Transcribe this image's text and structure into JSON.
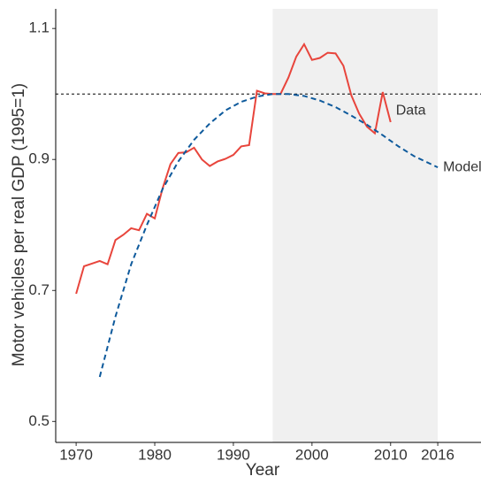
{
  "chart_data": {
    "type": "line",
    "xlabel": "Year",
    "ylabel": "Motor vehicles per real GDP (1995=1)",
    "xlim": [
      1967.4,
      2021.5
    ],
    "ylim": [
      0.468,
      1.13
    ],
    "xticks": [
      1970,
      1980,
      1990,
      2000,
      2010,
      2016
    ],
    "yticks": [
      0.5,
      0.7,
      0.9,
      1.1
    ],
    "shade": [
      1995,
      2016
    ],
    "shade_color": "#f0f0f0",
    "hline": 1,
    "series": [
      {
        "name": "Data",
        "color": "#e8453c",
        "dash": false,
        "x": [
          1970,
          1971,
          1972,
          1973,
          1974,
          1975,
          1976,
          1977,
          1978,
          1979,
          1980,
          1981,
          1982,
          1983,
          1984,
          1985,
          1986,
          1987,
          1988,
          1989,
          1990,
          1991,
          1992,
          1993,
          1994,
          1995,
          1996,
          1997,
          1998,
          1999,
          2000,
          2001,
          2002,
          2003,
          2004,
          2005,
          2006,
          2007,
          2008,
          2009,
          2010
        ],
        "values": [
          0.695,
          0.737,
          0.741,
          0.745,
          0.74,
          0.777,
          0.785,
          0.795,
          0.792,
          0.817,
          0.81,
          0.856,
          0.893,
          0.91,
          0.911,
          0.918,
          0.9,
          0.89,
          0.897,
          0.901,
          0.907,
          0.92,
          0.922,
          1.005,
          1.001,
          1.0,
          1.0,
          1.025,
          1.057,
          1.076,
          1.052,
          1.055,
          1.063,
          1.062,
          1.043,
          0.998,
          0.97,
          0.95,
          0.94,
          1.003,
          0.957
        ]
      },
      {
        "name": "Model",
        "color": "#0e5a9c",
        "dash": true,
        "x": [
          1973,
          1975,
          1977,
          1979,
          1981,
          1983,
          1985,
          1987,
          1989,
          1991,
          1993,
          1995,
          1997,
          1999,
          2001,
          2003,
          2005,
          2007,
          2009,
          2011,
          2013,
          2016
        ],
        "values": [
          0.568,
          0.66,
          0.74,
          0.8,
          0.855,
          0.897,
          0.93,
          0.955,
          0.975,
          0.988,
          0.996,
          1.0,
          1.0,
          0.997,
          0.99,
          0.98,
          0.967,
          0.953,
          0.937,
          0.92,
          0.905,
          0.888
        ]
      }
    ]
  }
}
